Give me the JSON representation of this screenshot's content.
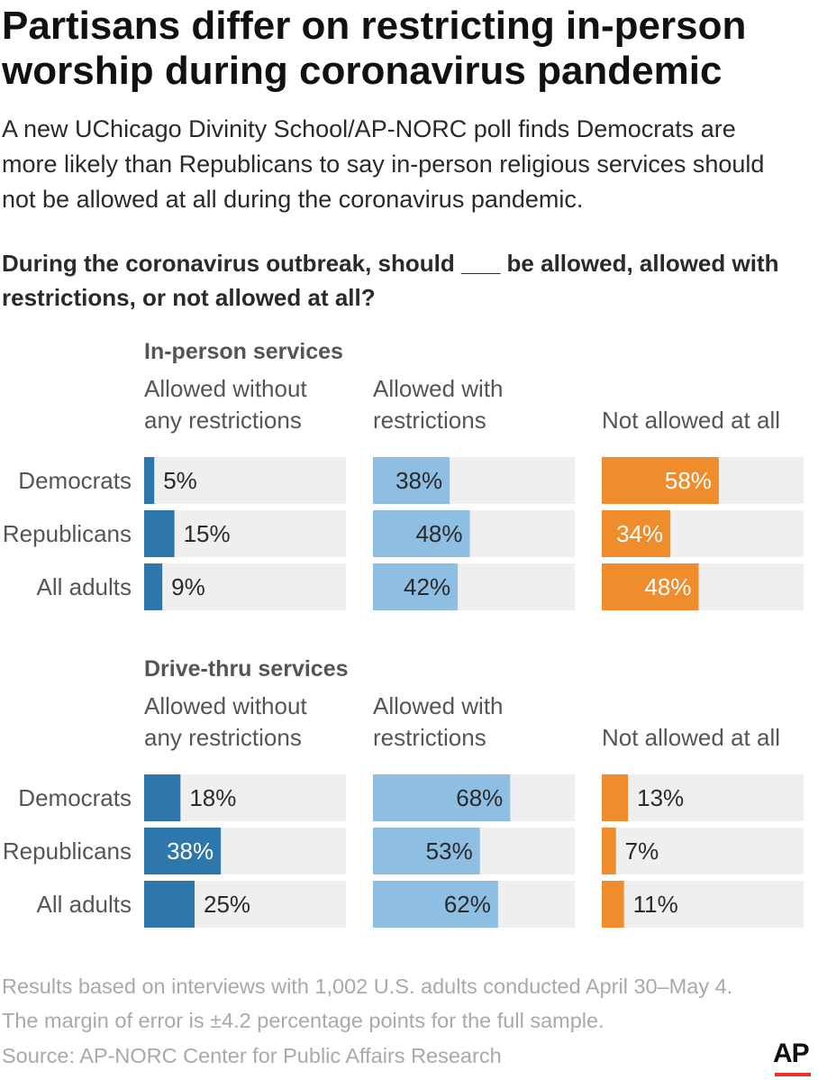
{
  "header": {
    "title": "Partisans differ on restricting in-person\nworship during coronavirus pandemic",
    "subtitle": "A new UChicago Divinity School/AP-NORC poll finds Democrats are\nmore likely than Republicans to say in-person religious services should\nnot be allowed at all during the coronavirus pandemic.",
    "question": "During the coronavirus outbreak, should ___ be allowed, allowed with\nrestrictions, or not allowed at all?"
  },
  "chart_data": [
    {
      "type": "bar",
      "orientation": "horizontal",
      "title": "In-person services",
      "categories": [
        "Democrats",
        "Republicans",
        "All adults"
      ],
      "series": [
        {
          "name": "Allowed without\nany restrictions",
          "values": [
            5,
            15,
            9
          ],
          "color": "#2e77ad"
        },
        {
          "name": "Allowed with\nrestrictions",
          "values": [
            38,
            48,
            42
          ],
          "color": "#8fbee3"
        },
        {
          "name": "Not allowed at all",
          "values": [
            58,
            34,
            48
          ],
          "color": "#ef8c2b"
        }
      ],
      "value_suffix": "%",
      "xlim": [
        0,
        100
      ]
    },
    {
      "type": "bar",
      "orientation": "horizontal",
      "title": "Drive-thru services",
      "categories": [
        "Democrats",
        "Republicans",
        "All adults"
      ],
      "series": [
        {
          "name": "Allowed without\nany restrictions",
          "values": [
            18,
            38,
            25
          ],
          "color": "#2e77ad"
        },
        {
          "name": "Allowed with\nrestrictions",
          "values": [
            68,
            53,
            62
          ],
          "color": "#8fbee3"
        },
        {
          "name": "Not allowed at all",
          "values": [
            13,
            7,
            11
          ],
          "color": "#ef8c2b"
        }
      ],
      "value_suffix": "%",
      "xlim": [
        0,
        100
      ]
    }
  ],
  "footer": {
    "notes": "Results based on interviews with 1,002 U.S. adults conducted April 30–May 4.\nThe margin of error is ±4.2 percentage points for the full sample.",
    "source": "Source: AP-NORC Center for Public Affairs Research",
    "logo_text": "AP"
  },
  "colors": {
    "track": "#efefef",
    "label_dark": "#2a2a2a",
    "label_light": "#ffffff"
  }
}
